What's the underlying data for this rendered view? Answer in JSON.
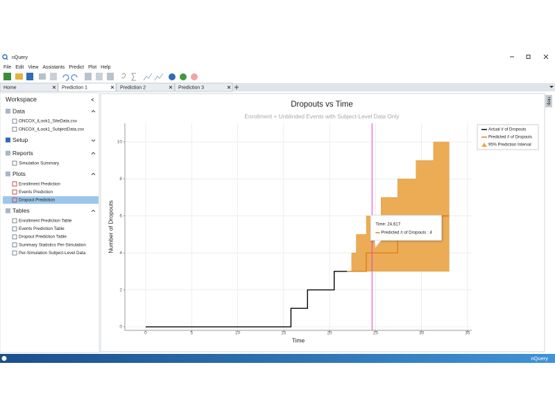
{
  "app": {
    "title": "nQuery",
    "menu": [
      "File",
      "Edit",
      "View",
      "Assistants",
      "Predict",
      "Plot",
      "Help"
    ],
    "tabs": [
      "Home",
      "Prediction 1",
      "Prediction 2",
      "Prediction 3"
    ],
    "active_tab": 1,
    "sidebar": {
      "title": "Workspace",
      "sections": [
        {
          "name": "Data",
          "items": [
            "ONCOX_iLook1_SiteData.csv",
            "ONCOX_iLook1_SubjectData.csv"
          ]
        },
        {
          "name": "Setup",
          "items": [],
          "collapsed": true
        },
        {
          "name": "Reports",
          "items": [
            "Simulation Summary"
          ]
        },
        {
          "name": "Plots",
          "items": [
            "Enrollment Prediction",
            "Events Prediction",
            "Dropout Prediction"
          ],
          "selected": 2
        },
        {
          "name": "Tables",
          "items": [
            "Enrollment Prediction Table",
            "Events Prediction Table",
            "Dropout Prediction Table",
            "Summary Statistics Per-Simulation",
            "Per-Simulation Subject-Level Data"
          ]
        }
      ]
    },
    "side_tab": "Help",
    "status": "nQuery"
  },
  "chart_data": {
    "type": "line",
    "title": "Dropouts vs Time",
    "subtitle": "Enrollment + Unblinded Events with Subject-Level Data Only",
    "xlabel": "Time",
    "ylabel": "Number of Dropouts",
    "xlim": [
      -2.26,
      35.46
    ],
    "ylim": [
      -0.19,
      11.01
    ],
    "xticks": [
      0,
      5,
      10,
      15,
      20,
      25,
      30,
      35
    ],
    "yticks": [
      0,
      2,
      4,
      6,
      8,
      10
    ],
    "grid": true,
    "legend": "upper right",
    "series": [
      {
        "name": "Actual # of Dropouts",
        "color": "#000000",
        "type": "line",
        "x": [
          0,
          15.8,
          15.8,
          17.6,
          17.6,
          20.5,
          20.5,
          21.9
        ],
        "values": [
          0,
          0,
          1,
          1,
          2,
          2,
          3,
          3
        ]
      },
      {
        "name": "Predicted # of Dropouts",
        "color": "#e07b1a",
        "type": "line",
        "x": [
          21.9,
          24.0,
          24.0,
          27.4,
          27.4,
          29.4,
          29.4,
          33.0
        ],
        "values": [
          3,
          3,
          4,
          4,
          5,
          5,
          6,
          6
        ]
      },
      {
        "name": "95% Prediction Interval",
        "color": "#eaa84c",
        "type": "band",
        "x": [
          21.9,
          22.4,
          22.4,
          22.9,
          22.9,
          24.0,
          24.0,
          25.6,
          25.6,
          27.4,
          27.4,
          29.4,
          29.4,
          31.3,
          31.3,
          33.0
        ],
        "upper": [
          3,
          3,
          4,
          4,
          5,
          5,
          6,
          6,
          7,
          7,
          8,
          8,
          9,
          9,
          10,
          10
        ],
        "lower": [
          3,
          3,
          3,
          3,
          3,
          3,
          3,
          3,
          3,
          3,
          3,
          3,
          3,
          3,
          3,
          3
        ]
      }
    ],
    "cursor": {
      "x": 24.617,
      "color": "#e040c8",
      "label": "Time: 24.617",
      "text": "Predicted # of Dropouts : 4"
    }
  }
}
